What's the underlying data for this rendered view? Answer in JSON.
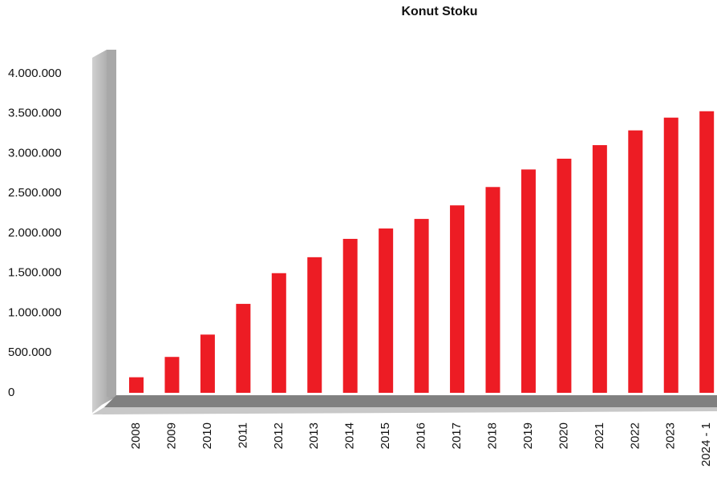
{
  "chart_data": {
    "type": "bar",
    "title": "Konut Stoku",
    "categories": [
      "2008",
      "2009",
      "2010",
      "2011",
      "2012",
      "2013",
      "2014",
      "2015",
      "2016",
      "2017",
      "2018",
      "2019",
      "2020",
      "2021",
      "2022",
      "2023",
      "2024 - 1"
    ],
    "values": [
      195000,
      450000,
      730000,
      1115000,
      1500000,
      1700000,
      1930000,
      2060000,
      2180000,
      2350000,
      2580000,
      2800000,
      2935000,
      3105000,
      3290000,
      3450000,
      3530000
    ],
    "color": "#ed1c24",
    "ylim": [
      0,
      4000000
    ],
    "yticks": [
      0,
      {
        "value": 500000,
        "label": "500.000"
      },
      {
        "value": 1000000,
        "label": "1.000.000"
      },
      {
        "value": 1500000,
        "label": "1.500.000"
      },
      {
        "value": 2000000,
        "label": "2.000.000"
      },
      {
        "value": 2500000,
        "label": "2.500.000"
      },
      {
        "value": 3000000,
        "label": "3.000.000"
      },
      {
        "value": 3500000,
        "label": "3.500.000"
      },
      {
        "value": 4000000,
        "label": "4.000.000"
      }
    ]
  }
}
